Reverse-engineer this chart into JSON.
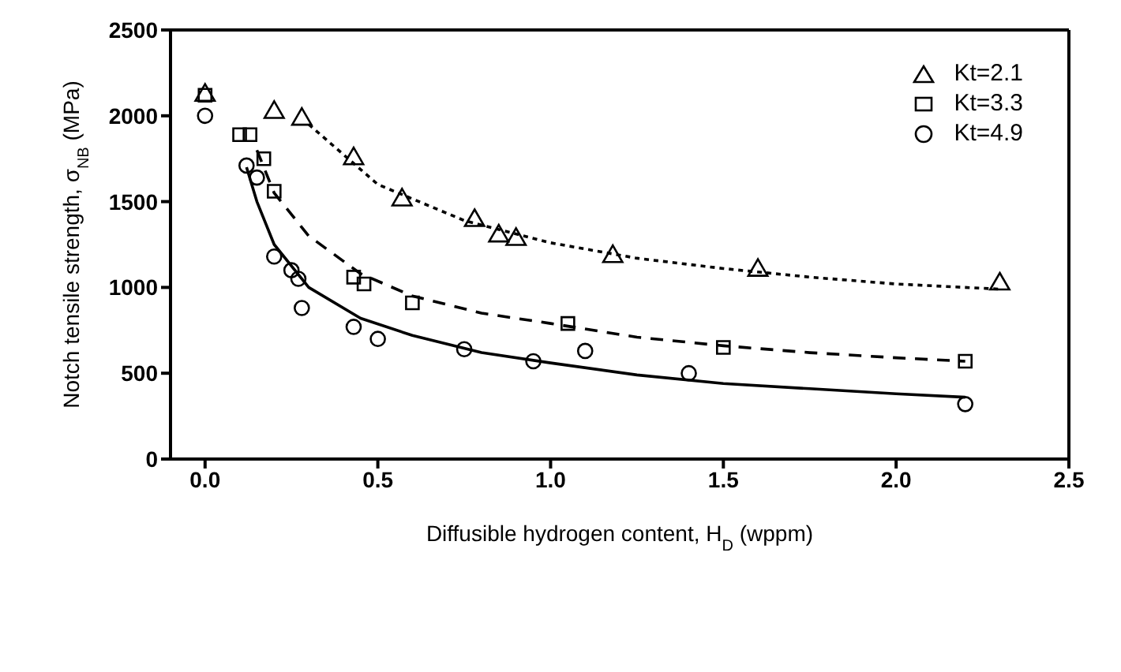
{
  "chart_data": {
    "type": "scatter",
    "xlabel": "Diffusible hydrogen content, H$_{D}$ (wppm)",
    "ylabel": "Notch tensile strength, σ$_{NB}$ (MPa)",
    "xlim": [
      -0.1,
      2.5
    ],
    "xticks": [
      {
        "value": 0,
        "label": "0.0"
      },
      0.5,
      {
        "value": 1,
        "label": "1.0"
      },
      1.5,
      {
        "value": 2,
        "label": "2.0"
      },
      2.5
    ],
    "ylim": [
      0,
      2500
    ],
    "yticks": [
      0,
      500,
      1000,
      1500,
      2000,
      2500
    ],
    "grid": false,
    "legend": "top right",
    "series": [
      {
        "name": "Kt=2.1",
        "color": "#000000",
        "marker": "triangle",
        "x": [
          0,
          0.2,
          0.28,
          0.43,
          0.57,
          0.78,
          0.85,
          0.9,
          1.18,
          1.6,
          2.3
        ],
        "values": [
          2120,
          2020,
          1980,
          1750,
          1510,
          1390,
          1300,
          1280,
          1180,
          1100,
          1020
        ]
      },
      {
        "name": "Kt=3.3",
        "color": "#000000",
        "marker": "square",
        "x": [
          0,
          0.1,
          0.13,
          0.17,
          0.2,
          0.43,
          0.46,
          0.6,
          1.05,
          1.5,
          2.2
        ],
        "values": [
          2120,
          1890,
          1890,
          1750,
          1560,
          1060,
          1020,
          910,
          790,
          650,
          570
        ]
      },
      {
        "name": "Kt=4.9",
        "color": "#000000",
        "marker": "circle",
        "x": [
          0,
          0.12,
          0.15,
          0.2,
          0.25,
          0.27,
          0.28,
          0.43,
          0.5,
          0.75,
          0.95,
          1.1,
          1.4,
          2.2
        ],
        "values": [
          2000,
          1710,
          1640,
          1180,
          1100,
          1050,
          880,
          770,
          700,
          640,
          570,
          630,
          500,
          320
        ]
      },
      {
        "type": "line",
        "color": "#000000",
        "line_style": "dotted",
        "marker": "none",
        "x": [
          0.3,
          0.5,
          0.75,
          1.0,
          1.25,
          1.5,
          1.75,
          2.0,
          2.3
        ],
        "values": [
          1950,
          1600,
          1390,
          1260,
          1170,
          1110,
          1060,
          1020,
          990
        ]
      },
      {
        "type": "line",
        "color": "#000000",
        "line_style": "dashed",
        "marker": "none",
        "x": [
          0.15,
          0.2,
          0.3,
          0.45,
          0.6,
          0.8,
          1.0,
          1.25,
          1.5,
          1.75,
          2.0,
          2.2
        ],
        "values": [
          1800,
          1550,
          1300,
          1080,
          950,
          850,
          790,
          710,
          660,
          620,
          590,
          570
        ]
      },
      {
        "type": "line",
        "color": "#000000",
        "line_style": "solid",
        "marker": "none",
        "x": [
          0.12,
          0.15,
          0.2,
          0.3,
          0.45,
          0.6,
          0.8,
          1.0,
          1.25,
          1.5,
          1.75,
          2.0,
          2.2
        ],
        "values": [
          1700,
          1500,
          1250,
          1000,
          820,
          720,
          620,
          560,
          490,
          440,
          410,
          380,
          360
        ]
      }
    ]
  }
}
